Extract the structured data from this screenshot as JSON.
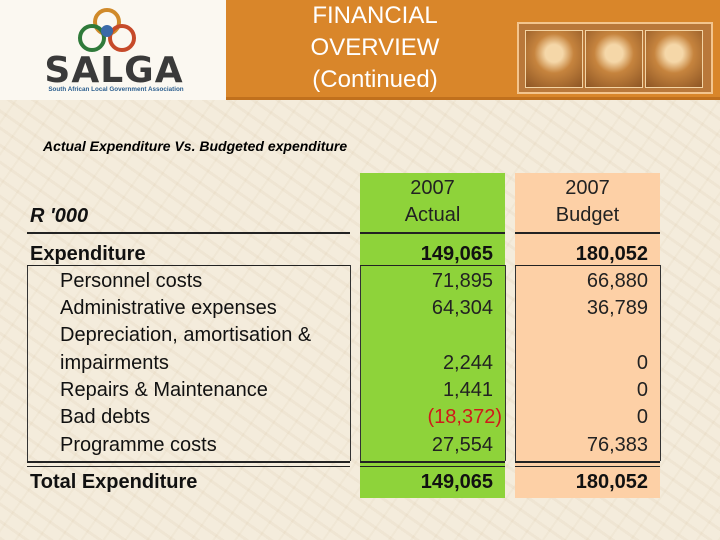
{
  "header": {
    "logo_text": "SALGA",
    "logo_tagline": "South African Local Government Association",
    "title_lines": [
      "FINANCIAL",
      "OVERVIEW",
      "(Continued)"
    ]
  },
  "subtitle": "Actual Expenditure Vs. Budgeted expenditure",
  "table": {
    "unit_label": "R '000",
    "col_actual": {
      "line1": "2007",
      "line2": "Actual"
    },
    "col_budget": {
      "line1": "2007",
      "line2": "Budget"
    },
    "expenditure": {
      "label": "Expenditure",
      "actual": "149,065",
      "budget": "180,052"
    },
    "rows": [
      {
        "label": "Personnel costs",
        "actual": "71,895",
        "budget": "66,880"
      },
      {
        "label": "Administrative expenses",
        "actual": "64,304",
        "budget": "36,789"
      },
      {
        "label": "Depreciation, amortisation &",
        "actual": "",
        "budget": ""
      },
      {
        "label": "impairments",
        "actual": "2,244",
        "budget": "0"
      },
      {
        "label": "Repairs & Maintenance",
        "actual": "1,441",
        "budget": "0"
      },
      {
        "label": "Bad debts",
        "actual": "(18,372)",
        "budget": "0"
      },
      {
        "label": "Programme costs",
        "actual": "27,554",
        "budget": "76,383"
      }
    ],
    "total": {
      "label": "Total Expenditure",
      "actual": "149,065",
      "budget": "180,052"
    }
  },
  "colors": {
    "header_orange": "#d9862a",
    "actual_green": "#8ed33a",
    "budget_peach": "#fdd0a6",
    "negative_red": "#d01a1a"
  }
}
